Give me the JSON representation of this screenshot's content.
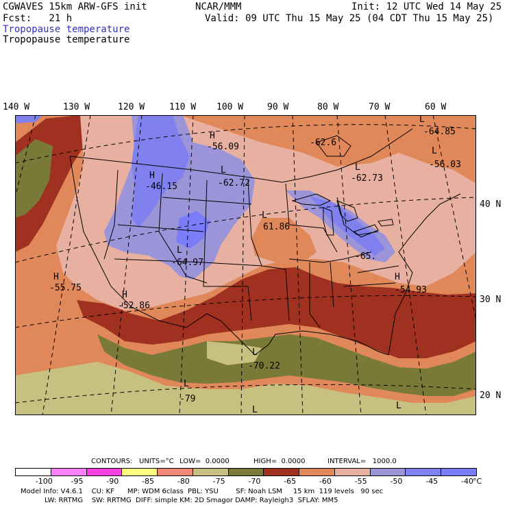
{
  "header": {
    "model": "CGWAVES 15km ARW-GFS init",
    "forecast": "Fcst:   21 h",
    "org": "NCAR/MMM",
    "init": "Init: 12 UTC Wed 14 May 25",
    "valid": "Valid: 09 UTC Thu 15 May 25 (04 CDT Thu 15 May 25)",
    "field_title_blue": "Tropopause temperature",
    "field_title_black": "Tropopause temperature"
  },
  "longitudes": [
    "140 W",
    "130 W",
    "120 W",
    "110 W",
    "100 W",
    "90 W",
    "80 W",
    "70 W",
    "60 W"
  ],
  "latitudes": [
    "40 N",
    "30 N",
    "20 N"
  ],
  "map_labels": [
    {
      "sym": "H",
      "val": "-56.09"
    },
    {
      "sym": "L",
      "val": "-62.72"
    },
    {
      "sym": "H",
      "val": "-46.15"
    },
    {
      "sym": "L",
      "val": "-62.73"
    },
    {
      "sym": "L",
      "val": "-64.85"
    },
    {
      "sym": "L",
      "val": "-56.03"
    },
    {
      "sym": "",
      "val": "-62.6"
    },
    {
      "sym": "L",
      "val": "61.86"
    },
    {
      "sym": "L",
      "val": "-64.97"
    },
    {
      "sym": "",
      "val": "-65."
    },
    {
      "sym": "H",
      "val": "-55.75"
    },
    {
      "sym": "H",
      "val": "-52.86"
    },
    {
      "sym": "H",
      "val": "-54.93"
    },
    {
      "sym": "L",
      "val": "-70.22"
    },
    {
      "sym": "L",
      "val": "-79"
    },
    {
      "sym": "L",
      "val": ""
    },
    {
      "sym": "L",
      "val": ""
    }
  ],
  "contour_info": {
    "contours": "CONTOURS:",
    "units": "UNITS=°C",
    "low": "LOW=  0.0000",
    "high": "HIGH=  0.0000",
    "interval": "INTERVAL=   1000.0"
  },
  "colorbar": {
    "unit": "°C",
    "ticks": [
      "-100",
      "-95",
      "-90",
      "-85",
      "-80",
      "-75",
      "-70",
      "-65",
      "-60",
      "-55",
      "-50",
      "-45",
      "-40"
    ],
    "colors": [
      "#ffffff",
      "#ff80ff",
      "#ff40e0",
      "#ffff80",
      "#f08878",
      "#c8c080",
      "#7a7a38",
      "#a03020",
      "#e0885a",
      "#e8b0a0",
      "#9c94d8",
      "#8080ee",
      "#7a7cf8"
    ]
  },
  "footer": {
    "line1": "Model Info: V4.6.1    CU: KF      MP: WDM 6class  PBL: YSU        SF: Noah LSM     15 km  119 levels   90 sec",
    "line2": "           LW: RRTMG    SW: RRTMG  DIFF: simple KM: 2D Smagor DAMP: Rayleigh3  SFLAY: MM5"
  },
  "colors": {
    "purple": "#9c94d8",
    "blue_violet": "#7a7cf8",
    "pink": "#e8b0a0",
    "orange": "#e0885a",
    "dark_red": "#a03020",
    "olive": "#7a7a38",
    "khaki": "#c8c080"
  }
}
